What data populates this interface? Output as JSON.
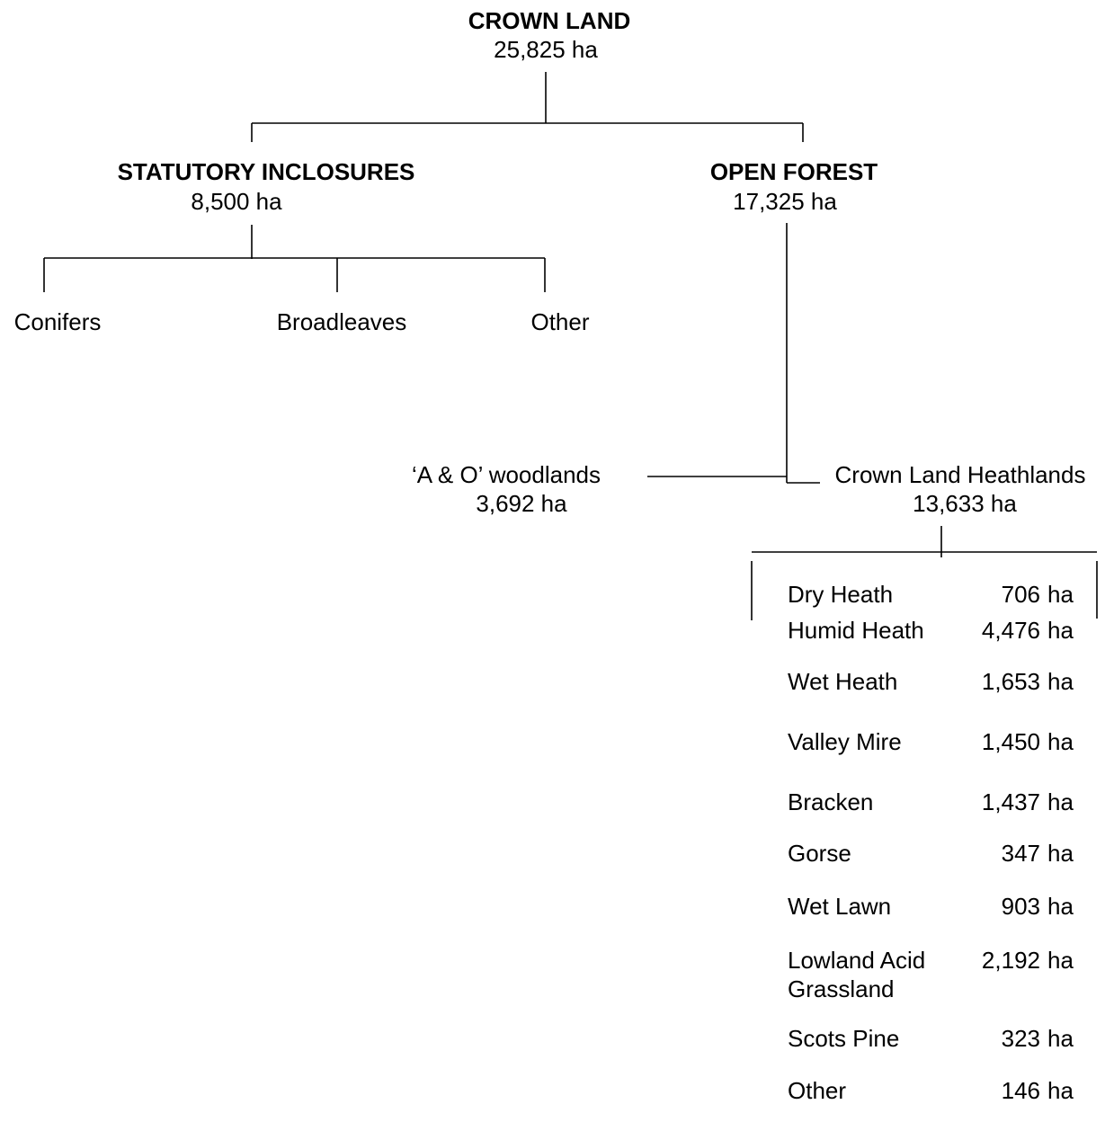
{
  "nodes": {
    "root": {
      "title": "CROWN LAND",
      "area": "25,825 ha"
    },
    "statutory": {
      "title": "STATUTORY INCLOSURES",
      "area": "8,500 ha"
    },
    "open": {
      "title": "OPEN FOREST",
      "area": "17,325 ha"
    },
    "conifers": {
      "label": "Conifers"
    },
    "broadleaves": {
      "label": "Broadleaves"
    },
    "other": {
      "label": "Other"
    },
    "ao": {
      "label": "‘A & O’ woodlands",
      "area": "3,692 ha"
    },
    "heathlands": {
      "label": "Crown Land Heathlands",
      "area": "13,633 ha"
    }
  },
  "habitats": [
    {
      "name_lines": [
        "Dry Heath"
      ],
      "value": "706",
      "unit": "ha"
    },
    {
      "name_lines": [
        "Humid Heath"
      ],
      "value": "4,476",
      "unit": "ha"
    },
    {
      "name_lines": [
        "Wet Heath"
      ],
      "value": "1,653",
      "unit": "ha"
    },
    {
      "name_lines": [
        "Valley Mire"
      ],
      "value": "1,450",
      "unit": "ha"
    },
    {
      "name_lines": [
        "Bracken"
      ],
      "value": "1,437",
      "unit": "ha"
    },
    {
      "name_lines": [
        "Gorse"
      ],
      "value": "347",
      "unit": "ha"
    },
    {
      "name_lines": [
        "Wet Lawn"
      ],
      "value": "903",
      "unit": "ha"
    },
    {
      "name_lines": [
        "Lowland Acid",
        "Grassland"
      ],
      "value": "2,192",
      "unit": "ha"
    },
    {
      "name_lines": [
        "Scots Pine"
      ],
      "value": "323",
      "unit": "ha"
    },
    {
      "name_lines": [
        "Other"
      ],
      "value": "146",
      "unit": "ha"
    }
  ]
}
